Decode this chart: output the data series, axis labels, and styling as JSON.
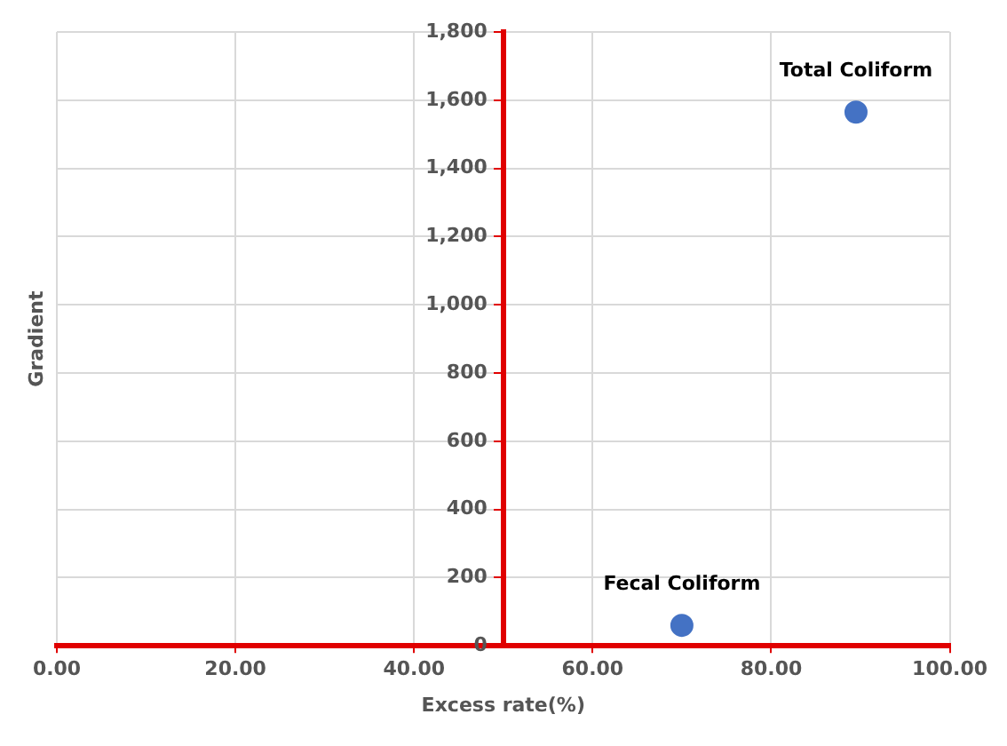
{
  "chart_data": {
    "type": "scatter",
    "xlabel": "Excess rate(%)",
    "ylabel": "Gradient",
    "x": [
      89.5,
      70
    ],
    "series": [
      {
        "color": "#4472c4",
        "values": [
          1565,
          60
        ]
      }
    ],
    "xlim": [
      0,
      100
    ],
    "xticks": [
      {
        "value": 0,
        "label": "0.00"
      },
      {
        "value": 20,
        "label": "20.00"
      },
      {
        "value": 40,
        "label": "40.00"
      },
      {
        "value": 60,
        "label": "60.00"
      },
      {
        "value": 80,
        "label": "80.00"
      },
      {
        "value": 100,
        "label": "100.00"
      }
    ],
    "ylim": [
      0,
      1800
    ],
    "yticks": [
      0,
      {
        "value": 200,
        "label": "200"
      },
      {
        "value": 400,
        "label": "400"
      },
      {
        "value": 600,
        "label": "600"
      },
      {
        "value": 800,
        "label": "800"
      },
      {
        "value": 1000,
        "label": "1,000"
      },
      {
        "value": 1200,
        "label": "1,200"
      },
      {
        "value": 1400,
        "label": "1,400"
      },
      {
        "value": 1600,
        "label": "1,600"
      },
      {
        "value": 1800,
        "label": "1,800"
      }
    ],
    "annotations": [
      {
        "text": "Total Coliform",
        "x": 89.5,
        "y": 1565
      },
      {
        "text": "Fecal Coliform",
        "x": 70,
        "y": 60
      }
    ],
    "grid": true,
    "marker": "circle",
    "legend": false
  }
}
